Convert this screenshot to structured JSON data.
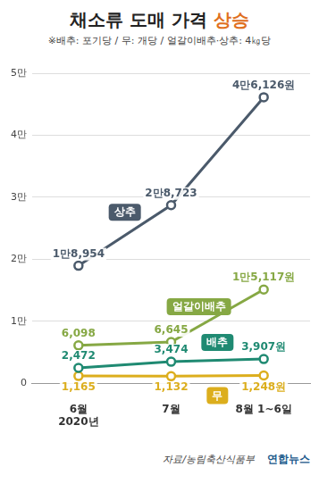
{
  "chart_data": {
    "type": "line",
    "title": "채소류 도매 가격 상승",
    "subtitle": "※배추: 포기당 / 무: 개당 / 얼갈이배추·상추: 4㎏당",
    "categories": [
      "6월",
      "7월",
      "8월 1~6일"
    ],
    "x_sublabel": "2020년",
    "ylim": [
      0,
      50000
    ],
    "yticks": [
      0,
      {
        "value": 10000,
        "label": "1만"
      },
      {
        "value": 20000,
        "label": "2만"
      },
      {
        "value": 30000,
        "label": "3만"
      },
      {
        "value": 40000,
        "label": "4만"
      },
      {
        "value": 50000,
        "label": "5만"
      }
    ],
    "grid": true,
    "data_labels": true,
    "series": [
      {
        "name": "상추",
        "color": "#4b5a6b",
        "marker": "circle",
        "values": [
          18954,
          28723,
          46126
        ],
        "value_labels": [
          "1만8,954",
          "2만8,723",
          "4만6,126원"
        ]
      },
      {
        "name": "얼갈이배추",
        "color": "#86a844",
        "marker": "circle",
        "values": [
          6098,
          6645,
          15117
        ],
        "value_labels": [
          "6,098",
          "6,645",
          "1만5,117원"
        ]
      },
      {
        "name": "배추",
        "color": "#1f8a72",
        "marker": "circle",
        "values": [
          2472,
          3474,
          3907
        ],
        "value_labels": [
          "2,472",
          "3,474",
          "3,907원"
        ]
      },
      {
        "name": "무",
        "color": "#dcae1d",
        "marker": "circle",
        "values": [
          1165,
          1132,
          1248
        ],
        "value_labels": [
          "1,165",
          "1,132",
          "1,248원"
        ]
      }
    ],
    "source": "자료/농림축산식품부",
    "credit": "연합뉴스"
  }
}
